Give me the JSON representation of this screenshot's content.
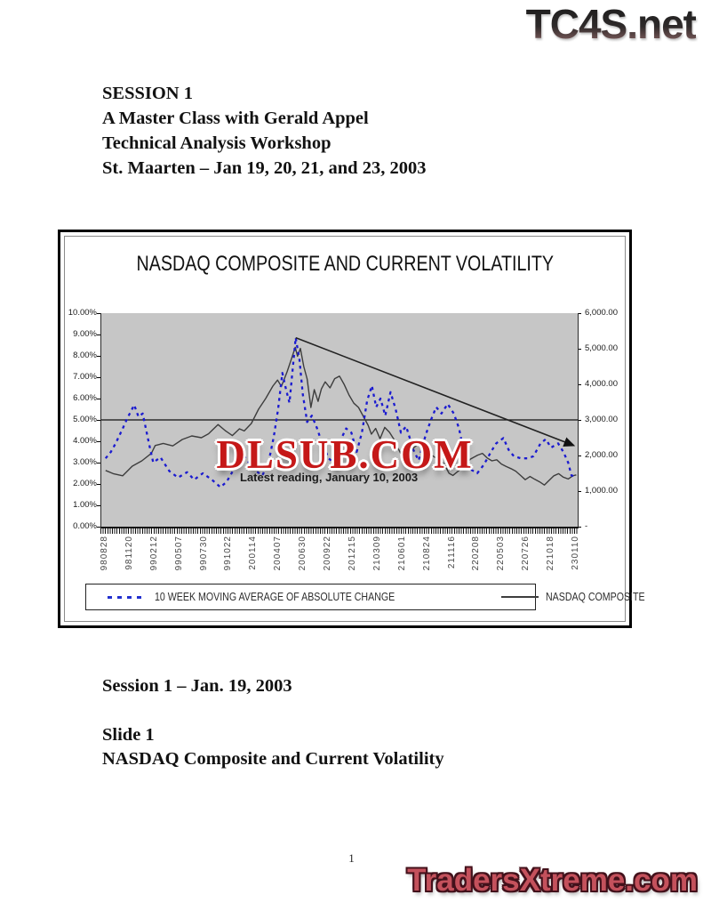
{
  "page": {
    "top_logo": "TC4S.net",
    "bottom_logo": "TradersXtreme.com",
    "page_number": "1"
  },
  "header": {
    "lines": [
      "SESSION 1",
      "A Master Class with Gerald Appel",
      "Technical Analysis Workshop",
      "St. Maarten – Jan 19, 20, 21, and 23, 2003"
    ]
  },
  "footer_text": {
    "session_line": "Session 1 – Jan. 19, 2003",
    "slide_label": "Slide 1",
    "slide_title": "NASDAQ Composite and Current Volatility"
  },
  "chart": {
    "title": "NASDAQ COMPOSITE AND CURRENT VOLATILITY",
    "watermark": "DLSUB.COM",
    "annotation": "Latest reading, January 10, 2003",
    "legend": [
      {
        "label": "10 WEEK MOVING AVERAGE OF ABSOLUTE CHANGE",
        "style": "dotted",
        "color": "#2230cf"
      },
      {
        "label": "NASDAQ COMPOSITE",
        "style": "solid",
        "color": "#3d3d3d"
      }
    ],
    "colors": {
      "plot_background": "#c6c6c6",
      "volatility_blue": "#1b1bd0",
      "nasdaq_gray": "#3d3d3d",
      "watermark_red": "#c51818",
      "logo_red": "#c4515c"
    }
  },
  "chart_data": {
    "type": "line",
    "title": "NASDAQ COMPOSITE AND CURRENT VOLATILITY",
    "left_axis": {
      "min": 0,
      "max": 10,
      "ticks": [
        "10.00%",
        "9.00%",
        "8.00%",
        "7.00%",
        "6.00%",
        "5.00%",
        "4.00%",
        "3.00%",
        "2.00%",
        "1.00%",
        "0.00%"
      ]
    },
    "right_axis": {
      "min": 0,
      "max": 6000,
      "ticks": [
        "6,000.00",
        "5,000.00",
        "4,000.00",
        "3,000.00",
        "2,000.00",
        "1,000.00",
        "-"
      ]
    },
    "x_ticks": [
      "980828",
      "981120",
      "990212",
      "990507",
      "990730",
      "991022",
      "200114",
      "200407",
      "200630",
      "200922",
      "201215",
      "210309",
      "210601",
      "210824",
      "211116",
      "220208",
      "220503",
      "220726",
      "221018",
      "230110"
    ],
    "reference_line_pct": 5.0,
    "trendline": {
      "axis": "right",
      "from": [
        0.408,
        5310
      ],
      "to": [
        0.992,
        2280
      ],
      "arrow": true
    },
    "series": [
      {
        "name": "10 WEEK MOVING AVERAGE OF ABSOLUTE CHANGE",
        "axis": "left",
        "unit": "percent",
        "color": "#1b1bd0",
        "dashed": true,
        "points": [
          [
            0.009,
            3.2
          ],
          [
            0.02,
            3.5
          ],
          [
            0.03,
            3.9
          ],
          [
            0.045,
            4.6
          ],
          [
            0.055,
            5.1
          ],
          [
            0.069,
            5.7
          ],
          [
            0.078,
            5.15
          ],
          [
            0.087,
            5.3
          ],
          [
            0.1,
            3.9
          ],
          [
            0.109,
            3.0
          ],
          [
            0.124,
            3.25
          ],
          [
            0.143,
            2.6
          ],
          [
            0.161,
            2.3
          ],
          [
            0.18,
            2.55
          ],
          [
            0.195,
            2.2
          ],
          [
            0.213,
            2.5
          ],
          [
            0.232,
            2.2
          ],
          [
            0.25,
            1.85
          ],
          [
            0.263,
            2.1
          ],
          [
            0.276,
            2.6
          ],
          [
            0.288,
            3.3
          ],
          [
            0.295,
            3.45
          ],
          [
            0.31,
            3.0
          ],
          [
            0.325,
            2.6
          ],
          [
            0.338,
            2.4
          ],
          [
            0.351,
            3.0
          ],
          [
            0.362,
            4.2
          ],
          [
            0.371,
            5.5
          ],
          [
            0.38,
            7.2
          ],
          [
            0.388,
            6.4
          ],
          [
            0.395,
            5.8
          ],
          [
            0.408,
            8.85
          ],
          [
            0.416,
            7.8
          ],
          [
            0.423,
            6.2
          ],
          [
            0.432,
            4.9
          ],
          [
            0.442,
            5.2
          ],
          [
            0.453,
            4.6
          ],
          [
            0.462,
            4.0
          ],
          [
            0.477,
            3.2
          ],
          [
            0.488,
            3.0
          ],
          [
            0.501,
            4.0
          ],
          [
            0.514,
            4.6
          ],
          [
            0.525,
            4.4
          ],
          [
            0.536,
            3.5
          ],
          [
            0.547,
            4.4
          ],
          [
            0.558,
            5.9
          ],
          [
            0.568,
            6.6
          ],
          [
            0.577,
            5.6
          ],
          [
            0.586,
            6.0
          ],
          [
            0.596,
            5.2
          ],
          [
            0.607,
            6.3
          ],
          [
            0.618,
            5.5
          ],
          [
            0.629,
            4.4
          ],
          [
            0.64,
            4.7
          ],
          [
            0.655,
            3.6
          ],
          [
            0.666,
            3.1
          ],
          [
            0.681,
            4.3
          ],
          [
            0.692,
            5.0
          ],
          [
            0.703,
            5.6
          ],
          [
            0.714,
            5.3
          ],
          [
            0.727,
            5.75
          ],
          [
            0.74,
            5.3
          ],
          [
            0.751,
            4.6
          ],
          [
            0.762,
            3.4
          ],
          [
            0.774,
            2.7
          ],
          [
            0.789,
            2.5
          ],
          [
            0.803,
            2.9
          ],
          [
            0.818,
            3.5
          ],
          [
            0.829,
            3.9
          ],
          [
            0.844,
            4.15
          ],
          [
            0.855,
            3.6
          ],
          [
            0.866,
            3.3
          ],
          [
            0.881,
            3.2
          ],
          [
            0.896,
            3.2
          ],
          [
            0.907,
            3.3
          ],
          [
            0.922,
            3.9
          ],
          [
            0.933,
            4.1
          ],
          [
            0.944,
            3.7
          ],
          [
            0.959,
            3.9
          ],
          [
            0.97,
            3.5
          ],
          [
            0.98,
            3.0
          ],
          [
            0.987,
            2.4
          ],
          [
            0.994,
            2.35
          ]
        ]
      },
      {
        "name": "NASDAQ COMPOSITE",
        "axis": "right",
        "unit": "index",
        "color": "#3d3d3d",
        "dashed": false,
        "points": [
          [
            0.009,
            1580
          ],
          [
            0.025,
            1490
          ],
          [
            0.045,
            1430
          ],
          [
            0.065,
            1700
          ],
          [
            0.085,
            1850
          ],
          [
            0.105,
            2060
          ],
          [
            0.113,
            2280
          ],
          [
            0.13,
            2340
          ],
          [
            0.15,
            2270
          ],
          [
            0.17,
            2450
          ],
          [
            0.19,
            2550
          ],
          [
            0.21,
            2500
          ],
          [
            0.225,
            2610
          ],
          [
            0.245,
            2870
          ],
          [
            0.26,
            2700
          ],
          [
            0.275,
            2560
          ],
          [
            0.29,
            2750
          ],
          [
            0.3,
            2690
          ],
          [
            0.315,
            2900
          ],
          [
            0.33,
            3300
          ],
          [
            0.345,
            3600
          ],
          [
            0.36,
            3950
          ],
          [
            0.37,
            4120
          ],
          [
            0.378,
            3940
          ],
          [
            0.39,
            4350
          ],
          [
            0.4,
            4750
          ],
          [
            0.407,
            5040
          ],
          [
            0.412,
            4790
          ],
          [
            0.418,
            5010
          ],
          [
            0.425,
            4500
          ],
          [
            0.432,
            4150
          ],
          [
            0.44,
            3350
          ],
          [
            0.447,
            3850
          ],
          [
            0.455,
            3520
          ],
          [
            0.462,
            3870
          ],
          [
            0.47,
            4070
          ],
          [
            0.48,
            3900
          ],
          [
            0.49,
            4160
          ],
          [
            0.5,
            4230
          ],
          [
            0.51,
            3990
          ],
          [
            0.52,
            3700
          ],
          [
            0.53,
            3470
          ],
          [
            0.54,
            3350
          ],
          [
            0.55,
            3100
          ],
          [
            0.56,
            2850
          ],
          [
            0.567,
            2600
          ],
          [
            0.576,
            2760
          ],
          [
            0.585,
            2470
          ],
          [
            0.595,
            2790
          ],
          [
            0.605,
            2650
          ],
          [
            0.615,
            2440
          ],
          [
            0.625,
            2150
          ],
          [
            0.635,
            1880
          ],
          [
            0.645,
            2000
          ],
          [
            0.655,
            2210
          ],
          [
            0.665,
            2320
          ],
          [
            0.675,
            2190
          ],
          [
            0.69,
            2050
          ],
          [
            0.7,
            1950
          ],
          [
            0.71,
            1900
          ],
          [
            0.72,
            1750
          ],
          [
            0.73,
            1500
          ],
          [
            0.738,
            1440
          ],
          [
            0.75,
            1570
          ],
          [
            0.762,
            1710
          ],
          [
            0.775,
            1900
          ],
          [
            0.79,
            2010
          ],
          [
            0.8,
            2060
          ],
          [
            0.81,
            1930
          ],
          [
            0.82,
            1850
          ],
          [
            0.83,
            1880
          ],
          [
            0.84,
            1760
          ],
          [
            0.85,
            1690
          ],
          [
            0.86,
            1630
          ],
          [
            0.87,
            1560
          ],
          [
            0.88,
            1440
          ],
          [
            0.89,
            1320
          ],
          [
            0.9,
            1410
          ],
          [
            0.91,
            1330
          ],
          [
            0.92,
            1260
          ],
          [
            0.93,
            1170
          ],
          [
            0.94,
            1300
          ],
          [
            0.95,
            1430
          ],
          [
            0.96,
            1490
          ],
          [
            0.97,
            1390
          ],
          [
            0.98,
            1340
          ],
          [
            0.99,
            1430
          ],
          [
            0.997,
            1455
          ]
        ]
      }
    ],
    "annotations": [
      "Latest reading, January 10, 2003"
    ],
    "legend_position": "bottom",
    "grid": "off"
  }
}
